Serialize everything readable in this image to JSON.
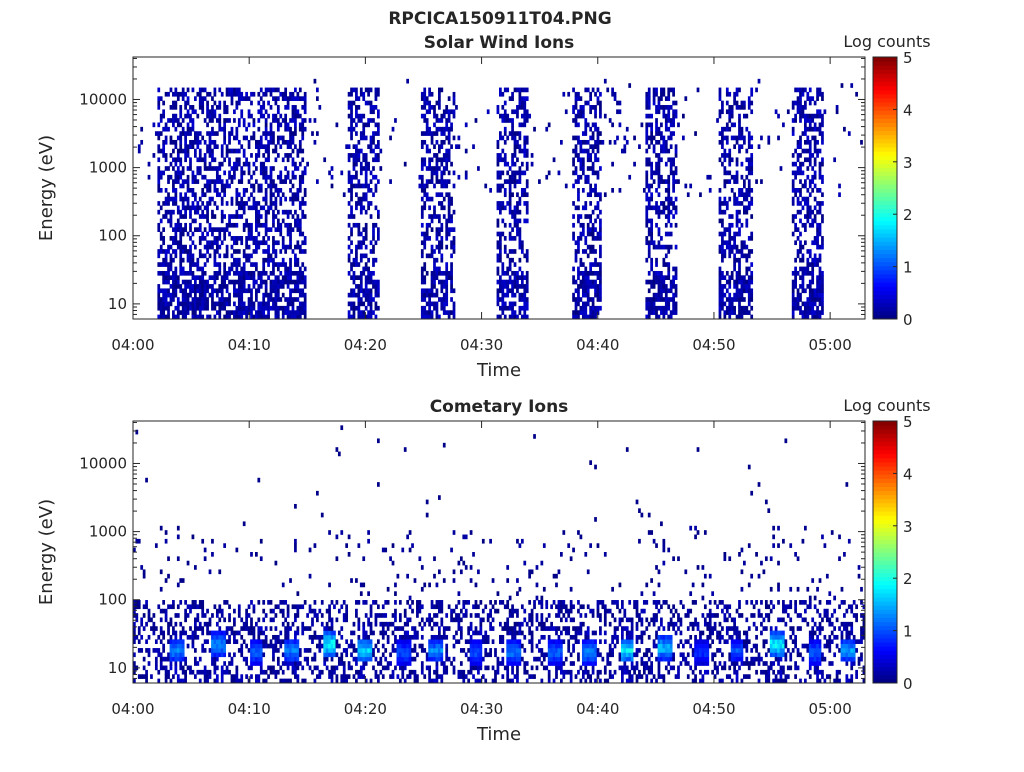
{
  "figure": {
    "title": "RPCICA150911T04.PNG"
  },
  "chart_data": [
    {
      "type": "heatmap",
      "title": "Solar Wind Ions",
      "xlabel": "Time",
      "ylabel": "Energy (eV)",
      "x_tick_labels": [
        "04:00",
        "04:10",
        "04:20",
        "04:30",
        "04:40",
        "04:50",
        "05:00"
      ],
      "x_tick_minutes": [
        0,
        10,
        20,
        30,
        40,
        50,
        60
      ],
      "xlim_minutes": [
        0,
        63
      ],
      "ylim_eV": [
        6,
        42000
      ],
      "y_scale": "log",
      "y_tick_values": [
        10,
        100,
        1000,
        10000
      ],
      "y_tick_labels": [
        "10",
        "100",
        "1000",
        "10000"
      ],
      "colorbar": {
        "label": "Log counts",
        "range": [
          0,
          5
        ],
        "tick_labels": [
          "0",
          "1",
          "2",
          "3",
          "4",
          "5"
        ]
      },
      "bursts": [
        {
          "t_start": 2.2,
          "t_end": 15.0,
          "max_energy_eV": 15000,
          "peak_log_counts": 0.4
        },
        {
          "t_start": 18.5,
          "t_end": 21.3,
          "max_energy_eV": 15000,
          "peak_log_counts": 0.4
        },
        {
          "t_start": 24.8,
          "t_end": 27.8,
          "max_energy_eV": 15000,
          "peak_log_counts": 0.4
        },
        {
          "t_start": 31.2,
          "t_end": 34.0,
          "max_energy_eV": 15000,
          "peak_log_counts": 0.4
        },
        {
          "t_start": 37.7,
          "t_end": 40.3,
          "max_energy_eV": 15000,
          "peak_log_counts": 0.4
        },
        {
          "t_start": 44.0,
          "t_end": 46.8,
          "max_energy_eV": 15000,
          "peak_log_counts": 0.4
        },
        {
          "t_start": 50.5,
          "t_end": 53.3,
          "max_energy_eV": 15000,
          "peak_log_counts": 0.4
        },
        {
          "t_start": 56.8,
          "t_end": 59.5,
          "max_energy_eV": 15000,
          "peak_log_counts": 0.4
        }
      ]
    },
    {
      "type": "heatmap",
      "title": "Cometary Ions",
      "xlabel": "Time",
      "ylabel": "Energy (eV)",
      "x_tick_labels": [
        "04:00",
        "04:10",
        "04:20",
        "04:30",
        "04:40",
        "04:50",
        "05:00"
      ],
      "x_tick_minutes": [
        0,
        10,
        20,
        30,
        40,
        50,
        60
      ],
      "xlim_minutes": [
        0,
        63
      ],
      "ylim_eV": [
        6,
        42000
      ],
      "y_scale": "log",
      "y_tick_values": [
        10,
        100,
        1000,
        10000
      ],
      "y_tick_labels": [
        "10",
        "100",
        "1000",
        "10000"
      ],
      "colorbar": {
        "label": "Log counts",
        "range": [
          0,
          5
        ],
        "tick_labels": [
          "0",
          "1",
          "2",
          "3",
          "4",
          "5"
        ]
      },
      "hotspots": [
        {
          "t": 3.8,
          "energy_eV": 18,
          "log_counts": 1.5
        },
        {
          "t": 7.3,
          "energy_eV": 22,
          "log_counts": 1.6
        },
        {
          "t": 10.6,
          "energy_eV": 17,
          "log_counts": 1.3
        },
        {
          "t": 13.7,
          "energy_eV": 18,
          "log_counts": 1.5
        },
        {
          "t": 16.9,
          "energy_eV": 22,
          "log_counts": 2.3
        },
        {
          "t": 19.9,
          "energy_eV": 18,
          "log_counts": 2.0
        },
        {
          "t": 23.3,
          "energy_eV": 17,
          "log_counts": 1.2
        },
        {
          "t": 26.1,
          "energy_eV": 18,
          "log_counts": 1.5
        },
        {
          "t": 29.5,
          "energy_eV": 17,
          "log_counts": 1.2
        },
        {
          "t": 32.8,
          "energy_eV": 17,
          "log_counts": 1.4
        },
        {
          "t": 36.4,
          "energy_eV": 17,
          "log_counts": 1.3
        },
        {
          "t": 39.2,
          "energy_eV": 17,
          "log_counts": 1.5
        },
        {
          "t": 42.5,
          "energy_eV": 18,
          "log_counts": 2.1
        },
        {
          "t": 45.8,
          "energy_eV": 20,
          "log_counts": 1.8
        },
        {
          "t": 49.0,
          "energy_eV": 17,
          "log_counts": 1.0
        },
        {
          "t": 52.0,
          "energy_eV": 18,
          "log_counts": 1.2
        },
        {
          "t": 55.4,
          "energy_eV": 22,
          "log_counts": 2.2
        },
        {
          "t": 58.7,
          "energy_eV": 17,
          "log_counts": 1.3
        },
        {
          "t": 61.5,
          "energy_eV": 18,
          "log_counts": 1.6
        }
      ]
    }
  ]
}
